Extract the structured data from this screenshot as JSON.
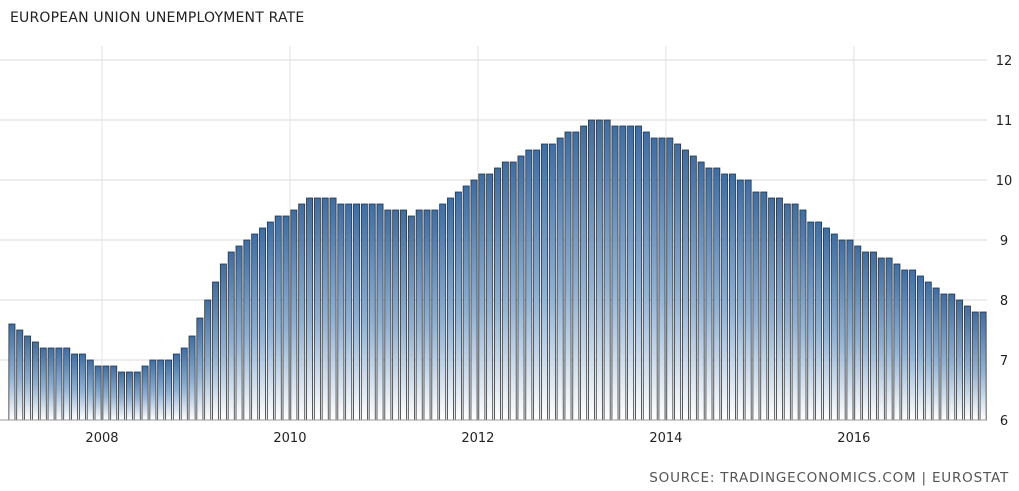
{
  "chart_data": {
    "type": "bar",
    "title": "EUROPEAN UNION UNEMPLOYMENT RATE",
    "source": "SOURCE: TRADINGECONOMICS.COM | EUROSTAT",
    "xlabel": "",
    "ylabel": "",
    "ylim": [
      6,
      12
    ],
    "yticks": [
      6,
      7,
      8,
      9,
      10,
      11,
      12
    ],
    "xticks": [
      "2008",
      "2010",
      "2012",
      "2014",
      "2016"
    ],
    "x_start": "2007-01",
    "x_end": "2017-05",
    "grid": true,
    "bar_color": "#3c6ea6",
    "series": [
      {
        "values": [
          7.6,
          7.5,
          7.4,
          7.3,
          7.2,
          7.2,
          7.2,
          7.2,
          7.1,
          7.1,
          7.0,
          6.9,
          6.9,
          6.9,
          6.8,
          6.8,
          6.8,
          6.9,
          7.0,
          7.0,
          7.0,
          7.1,
          7.2,
          7.4,
          7.7,
          8.0,
          8.3,
          8.6,
          8.8,
          8.9,
          9.0,
          9.1,
          9.2,
          9.3,
          9.4,
          9.4,
          9.5,
          9.6,
          9.7,
          9.7,
          9.7,
          9.7,
          9.6,
          9.6,
          9.6,
          9.6,
          9.6,
          9.6,
          9.5,
          9.5,
          9.5,
          9.4,
          9.5,
          9.5,
          9.5,
          9.6,
          9.7,
          9.8,
          9.9,
          10.0,
          10.1,
          10.1,
          10.2,
          10.3,
          10.3,
          10.4,
          10.5,
          10.5,
          10.6,
          10.6,
          10.7,
          10.8,
          10.8,
          10.9,
          11.0,
          11.0,
          11.0,
          10.9,
          10.9,
          10.9,
          10.9,
          10.8,
          10.7,
          10.7,
          10.7,
          10.6,
          10.5,
          10.4,
          10.3,
          10.2,
          10.2,
          10.1,
          10.1,
          10.0,
          10.0,
          9.8,
          9.8,
          9.7,
          9.7,
          9.6,
          9.6,
          9.5,
          9.3,
          9.3,
          9.2,
          9.1,
          9.0,
          9.0,
          8.9,
          8.8,
          8.8,
          8.7,
          8.7,
          8.6,
          8.5,
          8.5,
          8.4,
          8.3,
          8.2,
          8.1,
          8.1,
          8.0,
          7.9,
          7.8,
          7.8
        ]
      }
    ]
  }
}
